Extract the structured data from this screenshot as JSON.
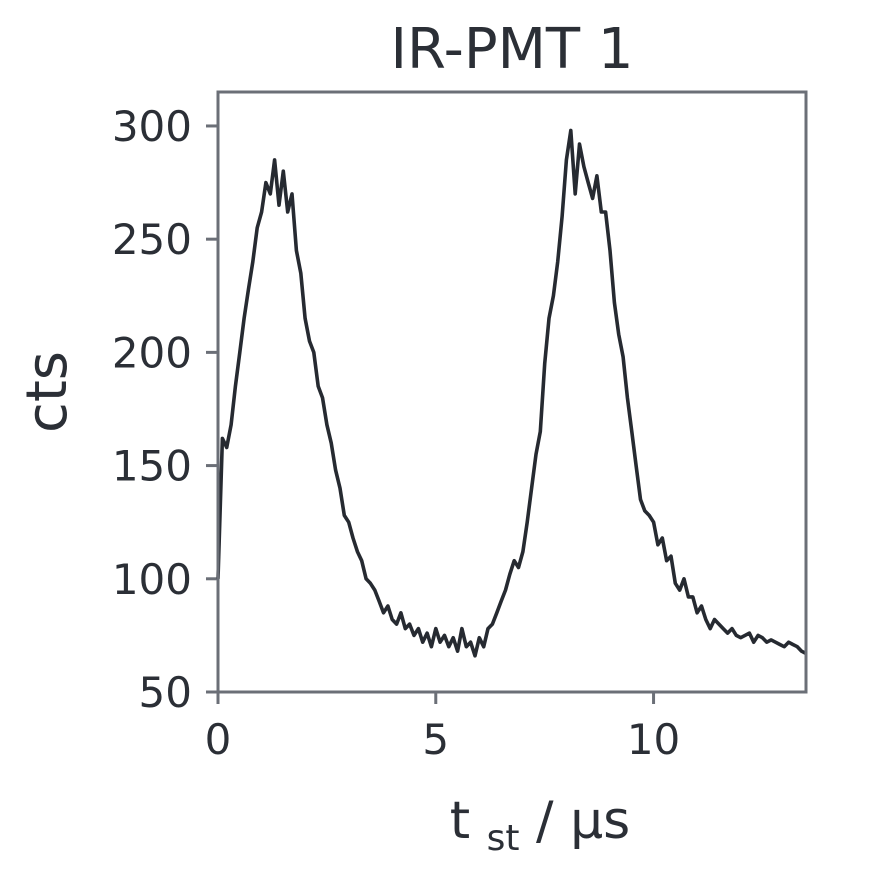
{
  "chart_data": {
    "type": "line",
    "title": "IR-PMT 1",
    "ylabel": "cts",
    "xlabel": {
      "main": "t",
      "sub": "st",
      "unit": " / μs"
    },
    "xlim": [
      0,
      13.5
    ],
    "ylim": [
      50,
      315
    ],
    "xticks": [
      0,
      5,
      10
    ],
    "yticks": [
      50,
      100,
      150,
      200,
      250,
      300
    ],
    "grid": false,
    "legend": "none",
    "color": "#262a31",
    "series": [
      {
        "x": [
          0.0,
          0.1,
          0.2,
          0.3,
          0.4,
          0.5,
          0.6,
          0.7,
          0.8,
          0.9,
          1.0,
          1.1,
          1.2,
          1.3,
          1.4,
          1.5,
          1.6,
          1.7,
          1.8,
          1.9,
          2.0,
          2.1,
          2.2,
          2.3,
          2.4,
          2.5,
          2.6,
          2.7,
          2.8,
          2.9,
          3.0,
          3.1,
          3.2,
          3.3,
          3.4,
          3.5,
          3.6,
          3.7,
          3.8,
          3.9,
          4.0,
          4.1,
          4.2,
          4.3,
          4.4,
          4.5,
          4.6,
          4.7,
          4.8,
          4.9,
          5.0,
          5.1,
          5.2,
          5.3,
          5.4,
          5.5,
          5.6,
          5.7,
          5.8,
          5.9,
          6.0,
          6.1,
          6.2,
          6.3,
          6.4,
          6.5,
          6.6,
          6.7,
          6.8,
          6.9,
          7.0,
          7.1,
          7.2,
          7.3,
          7.4,
          7.5,
          7.6,
          7.7,
          7.8,
          7.9,
          8.0,
          8.1,
          8.2,
          8.3,
          8.4,
          8.5,
          8.6,
          8.7,
          8.8,
          8.9,
          9.0,
          9.1,
          9.2,
          9.3,
          9.4,
          9.5,
          9.6,
          9.7,
          9.8,
          9.9,
          10.0,
          10.1,
          10.2,
          10.3,
          10.4,
          10.5,
          10.6,
          10.7,
          10.8,
          10.9,
          11.0,
          11.1,
          11.2,
          11.3,
          11.4,
          11.5,
          11.6,
          11.7,
          11.8,
          11.9,
          12.0,
          12.1,
          12.2,
          12.3,
          12.4,
          12.5,
          12.6,
          12.7,
          12.8,
          12.9,
          13.0,
          13.1,
          13.2,
          13.3,
          13.4,
          13.5
        ],
        "values": [
          100,
          162,
          158,
          168,
          185,
          200,
          215,
          228,
          240,
          255,
          262,
          275,
          270,
          285,
          265,
          280,
          262,
          270,
          245,
          235,
          215,
          205,
          200,
          185,
          180,
          168,
          160,
          148,
          140,
          128,
          125,
          118,
          112,
          108,
          100,
          98,
          95,
          90,
          85,
          88,
          82,
          80,
          85,
          78,
          80,
          75,
          78,
          72,
          76,
          70,
          78,
          72,
          75,
          70,
          74,
          68,
          78,
          70,
          72,
          66,
          74,
          70,
          78,
          80,
          85,
          90,
          95,
          102,
          108,
          105,
          112,
          125,
          140,
          155,
          165,
          195,
          215,
          225,
          240,
          260,
          285,
          298,
          270,
          292,
          282,
          275,
          268,
          278,
          262,
          262,
          245,
          222,
          208,
          198,
          180,
          165,
          150,
          135,
          130,
          128,
          125,
          115,
          118,
          108,
          110,
          98,
          95,
          100,
          92,
          92,
          85,
          88,
          82,
          78,
          82,
          80,
          78,
          76,
          78,
          75,
          74,
          75,
          76,
          72,
          75,
          74,
          72,
          73,
          72,
          71,
          70,
          72,
          71,
          70,
          68,
          67
        ]
      }
    ]
  }
}
